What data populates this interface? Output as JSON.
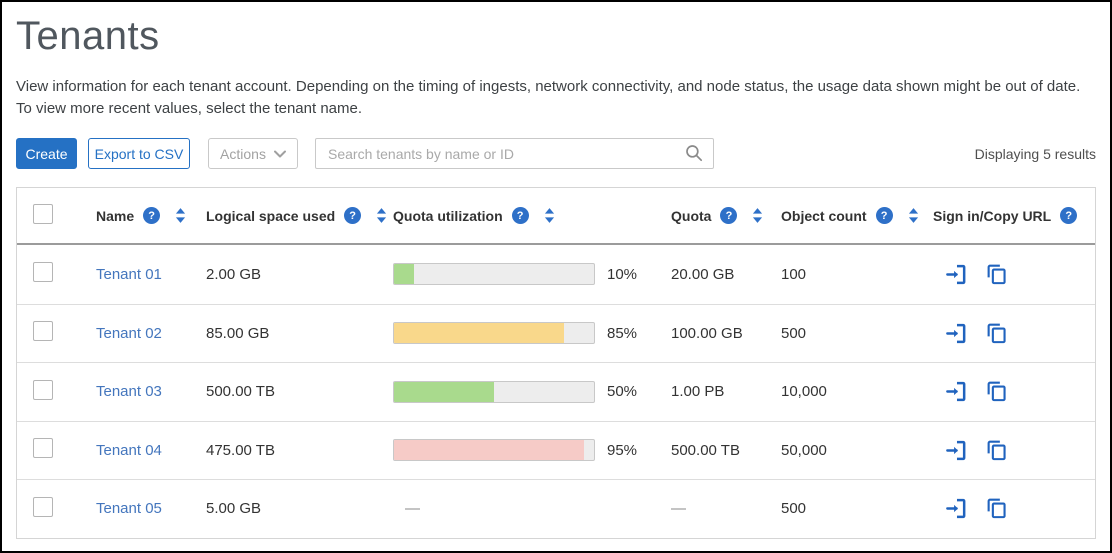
{
  "page": {
    "title": "Tenants",
    "description_line1": "View information for each tenant account. Depending on the timing of ingests, network connectivity, and node status, the usage data shown might be out of date.",
    "description_line2": "To view more recent values, select the tenant name."
  },
  "toolbar": {
    "create_label": "Create",
    "export_label": "Export to CSV",
    "actions_label": "Actions",
    "search_placeholder": "Search tenants by name or ID",
    "results_text": "Displaying 5 results"
  },
  "table": {
    "columns": [
      "Name",
      "Logical space used",
      "Quota utilization",
      "Quota",
      "Object count",
      "Sign in/Copy URL"
    ],
    "rows": [
      {
        "name": "Tenant 01",
        "logical_space": "2.00 GB",
        "utilization_pct": 10,
        "utilization_label": "10%",
        "bar_color": "#a9da8d",
        "quota": "20.00 GB",
        "objects": "100"
      },
      {
        "name": "Tenant 02",
        "logical_space": "85.00 GB",
        "utilization_pct": 85,
        "utilization_label": "85%",
        "bar_color": "#f9d88b",
        "quota": "100.00 GB",
        "objects": "500"
      },
      {
        "name": "Tenant 03",
        "logical_space": "500.00 TB",
        "utilization_pct": 50,
        "utilization_label": "50%",
        "bar_color": "#a9da8d",
        "quota": "1.00 PB",
        "objects": "10,000"
      },
      {
        "name": "Tenant 04",
        "logical_space": "475.00 TB",
        "utilization_pct": 95,
        "utilization_label": "95%",
        "bar_color": "#f6cbc7",
        "quota": "500.00 TB",
        "objects": "50,000"
      },
      {
        "name": "Tenant 05",
        "logical_space": "5.00 GB",
        "utilization_pct": null,
        "utilization_label": "—",
        "bar_color": null,
        "quota": "—",
        "objects": "500"
      }
    ]
  },
  "colors": {
    "primary_blue": "#2571c4",
    "link_blue": "#4476bd",
    "action_icon_blue": "#2063be",
    "help_icon_blue": "#2e70c8",
    "bar_green": "#a9da8d",
    "bar_yellow": "#f9d88b",
    "bar_red": "#f6cbc7",
    "bar_track": "#ededed"
  },
  "icons": {
    "search": "search-icon",
    "chevron_down": "chevron-down-icon",
    "help": "help-icon",
    "sort": "sort-arrows-icon",
    "sign_in": "sign-in-icon",
    "copy": "copy-url-icon"
  }
}
